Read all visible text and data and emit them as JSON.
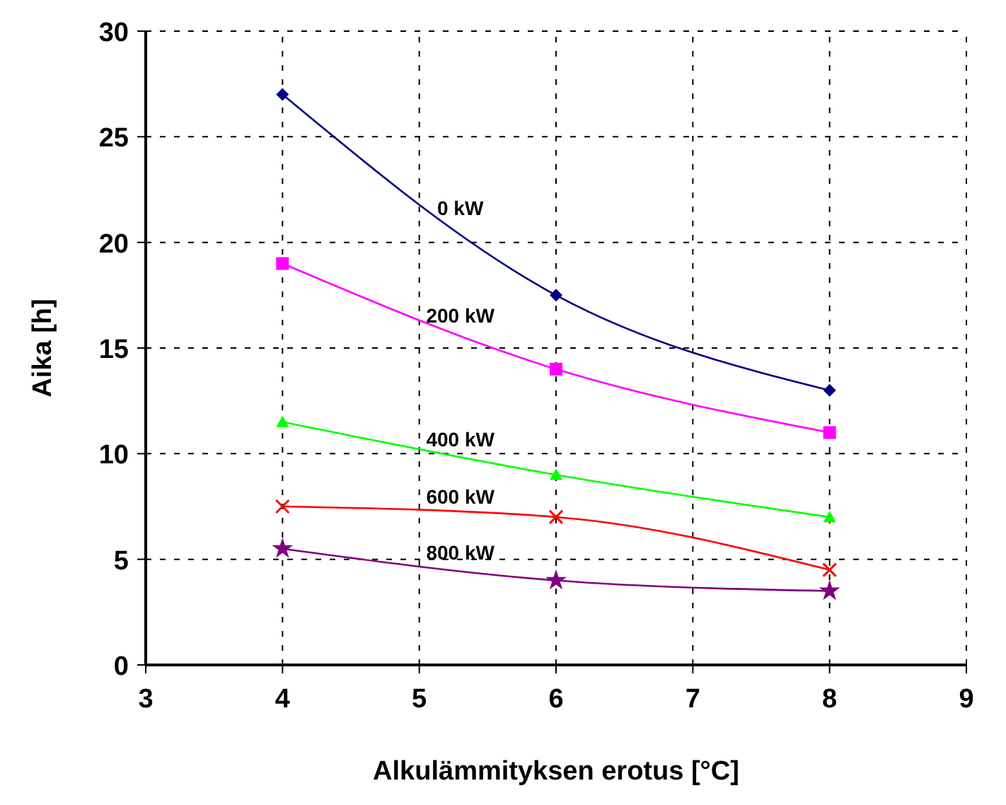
{
  "chart_data": {
    "type": "line",
    "xlabel": "Alkulämmityksen erotus [°C]",
    "ylabel": "Aika [h]",
    "x": [
      4,
      6,
      8
    ],
    "series": [
      {
        "name": "0 kW",
        "color": "#000080",
        "marker": "diamond",
        "values": [
          27,
          17.5,
          13
        ]
      },
      {
        "name": "200 kW",
        "color": "#ff00ff",
        "marker": "square",
        "values": [
          19,
          14,
          11
        ]
      },
      {
        "name": "400 kW",
        "color": "#00ff00",
        "marker": "triangle",
        "values": [
          11.5,
          9,
          7
        ]
      },
      {
        "name": "600 kW",
        "color": "#ff0000",
        "marker": "cross",
        "values": [
          7.5,
          7,
          4.5
        ]
      },
      {
        "name": "800 kW",
        "color": "#800080",
        "marker": "star",
        "values": [
          5.5,
          4,
          3.5
        ]
      }
    ],
    "xlim": [
      3,
      9
    ],
    "xticks": [
      3,
      4,
      5,
      6,
      7,
      8,
      9
    ],
    "ylim": [
      0,
      30
    ],
    "yticks": [
      0,
      5,
      10,
      15,
      20,
      25,
      30
    ],
    "grid": true,
    "line_style": "solid"
  }
}
